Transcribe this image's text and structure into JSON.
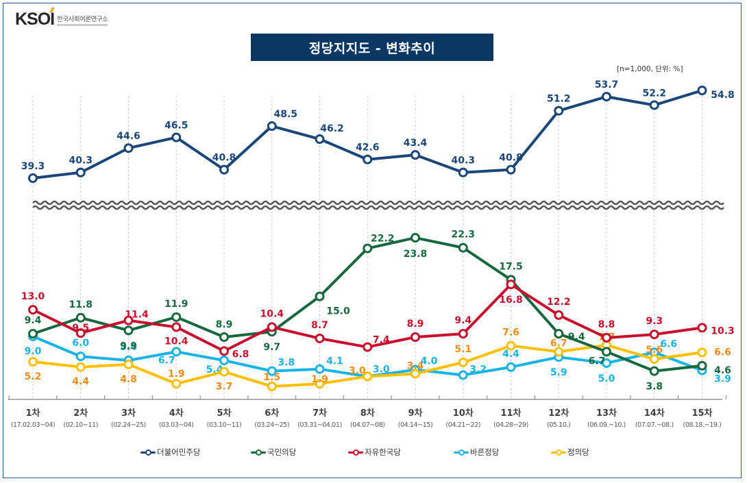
{
  "header": {
    "logo_text": "KSOI",
    "logo_subtitle": "한국사회여론연구소",
    "title": "정당지지도 - 변화추이",
    "note": "[n=1,000,  단위: %]"
  },
  "colors": {
    "title_bg": "#0b3764",
    "frame": "#2f5597",
    "series": {
      "더불어민주당": "#1a4679",
      "국민의당": "#17683e",
      "자유한국당": "#c8102e",
      "바른정당": "#19b3e6",
      "정의당": "#ffc000"
    },
    "label_overrides": {
      "정의당": "#f28c1e"
    }
  },
  "chart_data": {
    "type": "line",
    "title": "정당지지도 - 변화추이",
    "subtitle": "[n=1,000, 단위: %]",
    "xlabel": "",
    "ylabel": "",
    "axis_break": true,
    "grid": "vertical dashed",
    "legend_position": "bottom",
    "categories": [
      "1차",
      "2차",
      "3차",
      "4차",
      "5차",
      "6차",
      "7차",
      "8차",
      "9차",
      "10차",
      "11차",
      "12차",
      "13차",
      "14차",
      "15차"
    ],
    "category_dates": [
      "(17.02.03~04)",
      "(02.10~11)",
      "(02.24~25)",
      "(03.03~04)",
      "(03.10~11)",
      "(03.24~25)",
      "(03.31~04.01)",
      "(04.07~08)",
      "(04.14~15)",
      "(04.21~22)",
      "(04.28~29)",
      "(05.10.)",
      "(06.09.~10.)",
      "(07.07.~08.)",
      "(08.18.~19.)"
    ],
    "upper_panel": {
      "ylim": [
        39,
        55
      ],
      "series": [
        {
          "name": "더불어민주당",
          "values": [
            39.3,
            40.3,
            44.6,
            46.5,
            40.8,
            48.5,
            46.2,
            42.6,
            43.4,
            40.3,
            40.8,
            51.2,
            53.7,
            52.2,
            54.8
          ]
        }
      ]
    },
    "lower_panel": {
      "ylim": [
        0,
        24
      ],
      "series": [
        {
          "name": "국민의당",
          "values": [
            9.4,
            11.8,
            9.9,
            11.9,
            8.9,
            9.7,
            15.0,
            22.2,
            23.8,
            22.3,
            17.5,
            9.4,
            6.7,
            3.8,
            4.6
          ]
        },
        {
          "name": "자유한국당",
          "values": [
            13.0,
            9.5,
            11.4,
            10.4,
            6.8,
            10.4,
            8.7,
            7.4,
            8.9,
            9.4,
            16.8,
            12.2,
            8.8,
            9.3,
            10.3
          ]
        },
        {
          "name": "바른정당",
          "values": [
            9.0,
            6.0,
            5.4,
            6.7,
            5.4,
            3.8,
            4.1,
            3.0,
            4.0,
            3.2,
            4.4,
            5.9,
            5.0,
            6.6,
            3.9
          ]
        },
        {
          "name": "정의당",
          "values": [
            5.2,
            4.4,
            4.8,
            1.9,
            3.7,
            1.5,
            1.9,
            3.0,
            3.4,
            5.1,
            7.6,
            6.7,
            7.7,
            5.6,
            6.6
          ]
        }
      ]
    }
  },
  "legend": [
    {
      "label": "더불어민주당"
    },
    {
      "label": "국민의당"
    },
    {
      "label": "자유한국당"
    },
    {
      "label": "바른정당"
    },
    {
      "label": "정의당"
    }
  ]
}
